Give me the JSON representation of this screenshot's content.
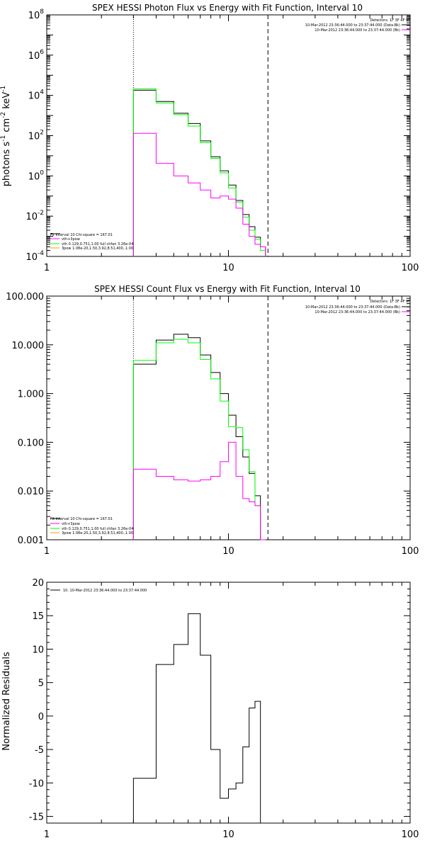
{
  "panels": [
    {
      "type": "line",
      "title": "SPEX HESSI Photon Flux vs Energy with Fit Function, Interval 10",
      "ylabel_main": "photons s",
      "ylabel_sup1": "-1",
      "ylabel_mid": " cm",
      "ylabel_sup2": "-2",
      "ylabel_end": " keV",
      "ylabel_sup3": "-1",
      "xscale": "log",
      "yscale": "log",
      "xlim": [
        1,
        100
      ],
      "ylim": [
        0.0001,
        100000000
      ],
      "x_ticks": [
        {
          "value": 1,
          "label": "1"
        },
        {
          "value": 10,
          "label": "10"
        },
        {
          "value": 100,
          "label": "100"
        }
      ],
      "y_ticks": [
        {
          "value": 0.0001,
          "base": "10",
          "exp": "-4"
        },
        {
          "value": 0.01,
          "base": "10",
          "exp": "-2"
        },
        {
          "value": 1,
          "base": "10",
          "exp": "0"
        },
        {
          "value": 100,
          "base": "10",
          "exp": "2"
        },
        {
          "value": 10000,
          "base": "10",
          "exp": "4"
        },
        {
          "value": 1000000,
          "base": "10",
          "exp": "6"
        },
        {
          "value": 100000000,
          "base": "10",
          "exp": "8"
        }
      ],
      "vlines": [
        {
          "x": 3.0,
          "style": "dotted"
        },
        {
          "x": 16.5,
          "style": "dashed"
        }
      ],
      "bin_edges": [
        3,
        4,
        5,
        6,
        7,
        8,
        9,
        10,
        11,
        12,
        13,
        14,
        15,
        16
      ],
      "series": [
        {
          "color": "#000000",
          "values": [
            18000,
            5000,
            1300,
            400,
            55,
            9,
            1.8,
            0.35,
            0.06,
            0.012,
            0.003,
            0.0009,
            0.0003
          ]
        },
        {
          "color": "#00ff00",
          "values": [
            21000,
            4200,
            1100,
            300,
            45,
            7.5,
            1.4,
            0.25,
            0.05,
            0.009,
            0.002,
            0.0007,
            0.0002
          ]
        },
        {
          "color": "#ff00ff",
          "values": [
            130,
            4.2,
            1.0,
            0.45,
            0.2,
            0.08,
            0.1,
            0.07,
            0.025,
            0.004,
            0.001,
            0.0004,
            0.0003
          ]
        }
      ],
      "legend_left": [
        {
          "text": "Fit Interval 10   Chi-square = 167.01",
          "color": "#000000"
        },
        {
          "text": "vth+3pow",
          "color": "#ff00ff"
        },
        {
          "text": "vth 0.129,0.751,1.00  full chfan 3.26e-04",
          "color": "#00ff00"
        },
        {
          "text": "3pow 1.08e-20,1.50,3.92,8.51,400.,1.00",
          "color": "#ff9900"
        }
      ],
      "legend_right_title": "Detectors: 1F 3F 4F 9F",
      "legend_right": [
        {
          "text": "10-Mar-2012 23:36:44.000 to 23:37:44.000 (Data-Bk)",
          "color": "#000000"
        },
        {
          "text": "10-Mar-2012 23:36:44.000 to 23:37:44.000 (Bk)",
          "color": "#ff00ff"
        }
      ]
    },
    {
      "type": "line",
      "title": "SPEX HESSI Count Flux vs Energy with Fit Function, Interval 10",
      "xscale": "log",
      "yscale": "log",
      "xlim": [
        1,
        100
      ],
      "ylim": [
        0.001,
        100
      ],
      "x_ticks": [
        {
          "value": 1,
          "label": "1"
        },
        {
          "value": 10,
          "label": "10"
        },
        {
          "value": 100,
          "label": "100"
        }
      ],
      "y_ticks": [
        {
          "value": 0.001,
          "label": "0.001"
        },
        {
          "value": 0.01,
          "label": "0.010"
        },
        {
          "value": 0.1,
          "label": "0.100"
        },
        {
          "value": 1,
          "label": "1.000"
        },
        {
          "value": 10,
          "label": "10.000"
        },
        {
          "value": 100,
          "label": "100.000"
        }
      ],
      "vlines": [
        {
          "x": 3.0,
          "style": "dotted"
        },
        {
          "x": 16.5,
          "style": "dashed"
        }
      ],
      "bin_edges": [
        3,
        4,
        5,
        6,
        7,
        8,
        9,
        10,
        11,
        12,
        13,
        14,
        15,
        16
      ],
      "series": [
        {
          "color": "#000000",
          "values": [
            4.0,
            12.5,
            16.5,
            14.0,
            6.2,
            2.7,
            1.0,
            0.36,
            0.13,
            0.05,
            0.023,
            0.008,
            0.001
          ]
        },
        {
          "color": "#00ff00",
          "values": [
            4.8,
            11.0,
            13.0,
            11.0,
            5.0,
            2.0,
            0.7,
            0.21,
            0.2,
            0.07,
            0.025,
            0.005,
            0.001
          ]
        },
        {
          "color": "#ff00ff",
          "values": [
            0.028,
            0.02,
            0.017,
            0.016,
            0.017,
            0.02,
            0.04,
            0.1,
            0.02,
            0.007,
            0.006,
            0.005,
            0.001
          ]
        }
      ],
      "legend_left": [
        {
          "text": "Fit Interval 10   Chi-square = 167.01",
          "color": "#000000"
        },
        {
          "text": "vth+3pow",
          "color": "#ff00ff"
        },
        {
          "text": "vth 0.129,0.751,1.00  full chfan 3.26e-04",
          "color": "#00ff00"
        },
        {
          "text": "3pow 1.08e-20,1.50,3.92,8.51,400.,1.00",
          "color": "#ff9900"
        }
      ],
      "legend_right_title": "Detectors: 1F 3F 4F 9F",
      "legend_right": [
        {
          "text": "10-Mar-2012 23:36:44.000 to 23:37:44.000 (Data-Bk)",
          "color": "#000000"
        },
        {
          "text": "10-Mar-2012 23:36:44.000 to 23:37:44.000 (Bk)",
          "color": "#ff00ff"
        }
      ]
    },
    {
      "type": "line",
      "title": "",
      "ylabel": "Normalized Residuals",
      "xscale": "log",
      "yscale": "linear",
      "xlim": [
        1,
        100
      ],
      "ylim": [
        -16,
        20
      ],
      "x_ticks": [
        {
          "value": 1,
          "label": "1"
        },
        {
          "value": 10,
          "label": "10"
        },
        {
          "value": 100,
          "label": "100"
        }
      ],
      "y_ticks": [
        {
          "value": -15,
          "label": "-15"
        },
        {
          "value": -10,
          "label": "-10"
        },
        {
          "value": -5,
          "label": "-5"
        },
        {
          "value": 0,
          "label": "0"
        },
        {
          "value": 5,
          "label": "5"
        },
        {
          "value": 10,
          "label": "10"
        },
        {
          "value": 15,
          "label": "15"
        },
        {
          "value": 20,
          "label": "20"
        }
      ],
      "bin_edges": [
        3,
        4,
        5,
        6,
        7,
        8,
        9,
        10,
        11,
        12,
        13,
        14,
        15,
        16
      ],
      "series": [
        {
          "color": "#000000",
          "values": [
            -9.3,
            7.7,
            10.7,
            15.3,
            9.1,
            -5.0,
            -12.3,
            -10.9,
            -10.0,
            -4.6,
            1.2,
            2.2,
            -16
          ]
        }
      ],
      "legend_left": [
        {
          "text": "10. 10-Mar-2012 23:36:44.000 to 23:37:44.000",
          "color": "#000000"
        }
      ]
    }
  ],
  "chart_data": [
    {
      "type": "line",
      "title": "SPEX HESSI Photon Flux vs Energy with Fit Function, Interval 10",
      "xlabel": "",
      "ylabel": "photons s-1 cm-2 keV-1",
      "x_scale": "log",
      "y_scale": "log",
      "xlim": [
        1,
        100
      ],
      "ylim": [
        0.0001,
        100000000
      ],
      "x": [
        3.5,
        4.5,
        5.5,
        6.5,
        7.5,
        8.5,
        9.5,
        10.5,
        11.5,
        12.5,
        13.5,
        14.5,
        15.5
      ],
      "series": [
        {
          "values": [
            18000,
            5000,
            1300,
            400,
            55,
            9,
            1.8,
            0.35,
            0.06,
            0.012,
            0.003,
            0.0009,
            0.0003
          ]
        },
        {
          "values": [
            21000,
            4200,
            1100,
            300,
            45,
            7.5,
            1.4,
            0.25,
            0.05,
            0.009,
            0.002,
            0.0007,
            0.0002
          ]
        },
        {
          "values": [
            130,
            4.2,
            1.0,
            0.45,
            0.2,
            0.08,
            0.1,
            0.07,
            0.025,
            0.004,
            0.001,
            0.0004,
            0.0003
          ]
        }
      ]
    },
    {
      "type": "line",
      "title": "SPEX HESSI Count Flux vs Energy with Fit Function, Interval 10",
      "xlabel": "",
      "ylabel": "",
      "x_scale": "log",
      "y_scale": "log",
      "xlim": [
        1,
        100
      ],
      "ylim": [
        0.001,
        100
      ],
      "x": [
        3.5,
        4.5,
        5.5,
        6.5,
        7.5,
        8.5,
        9.5,
        10.5,
        11.5,
        12.5,
        13.5,
        14.5,
        15.5
      ],
      "series": [
        {
          "values": [
            4.0,
            12.5,
            16.5,
            14.0,
            6.2,
            2.7,
            1.0,
            0.36,
            0.13,
            0.05,
            0.023,
            0.008,
            0.001
          ]
        },
        {
          "values": [
            4.8,
            11.0,
            13.0,
            11.0,
            5.0,
            2.0,
            0.7,
            0.21,
            0.2,
            0.07,
            0.025,
            0.005,
            0.001
          ]
        },
        {
          "values": [
            0.028,
            0.02,
            0.017,
            0.016,
            0.017,
            0.02,
            0.04,
            0.1,
            0.02,
            0.007,
            0.006,
            0.005,
            0.001
          ]
        }
      ]
    },
    {
      "type": "line",
      "title": "",
      "xlabel": "",
      "ylabel": "Normalized Residuals",
      "x_scale": "log",
      "y_scale": "linear",
      "xlim": [
        1,
        100
      ],
      "ylim": [
        -16,
        20
      ],
      "x": [
        3.5,
        4.5,
        5.5,
        6.5,
        7.5,
        8.5,
        9.5,
        10.5,
        11.5,
        12.5,
        13.5,
        14.5,
        15.5
      ],
      "series": [
        {
          "name": "10. 10-Mar-2012 23:36:44.000 to 23:37:44.000",
          "values": [
            -9.3,
            7.7,
            10.7,
            15.3,
            9.1,
            -5.0,
            -12.3,
            -10.9,
            -10.0,
            -4.6,
            1.2,
            2.2,
            -16
          ]
        }
      ]
    }
  ]
}
